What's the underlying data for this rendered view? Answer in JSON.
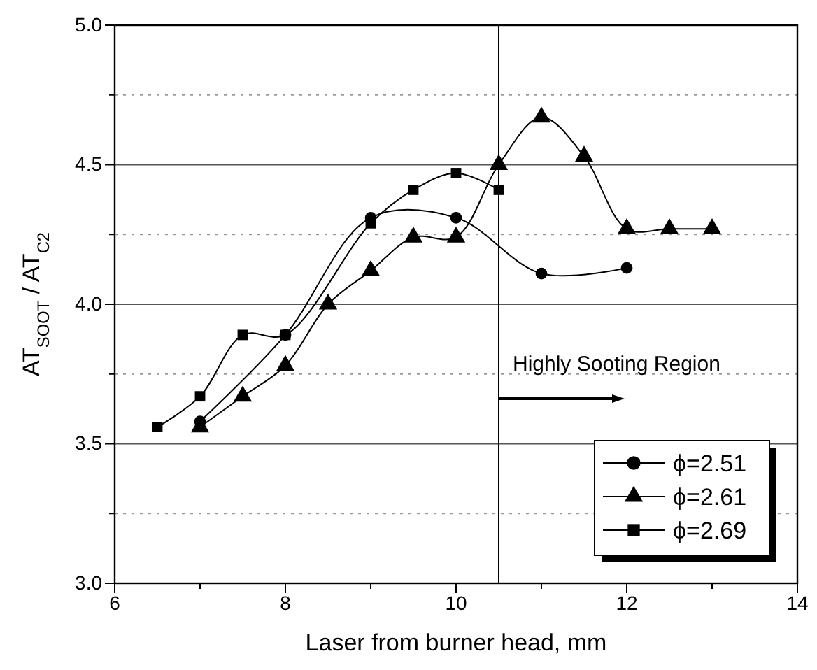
{
  "chart_data": {
    "type": "line",
    "xlabel": "Laser from burner head, mm",
    "ylabel": "AT$_{SOOT}$ / AT$_{C2}$",
    "xlim": [
      6,
      14
    ],
    "xticks": [
      6,
      {
        "value": 7,
        "label": null
      },
      8,
      {
        "value": 9,
        "label": null
      },
      10,
      {
        "value": 11,
        "label": null
      },
      12,
      {
        "value": 13,
        "label": null
      },
      14
    ],
    "ylim": [
      3,
      5
    ],
    "yticks": [
      {
        "value": 3,
        "label": "3.0"
      },
      {
        "value": 3.25,
        "label": null
      },
      {
        "value": 3.5,
        "label": "3.5"
      },
      {
        "value": 3.75,
        "label": null
      },
      {
        "value": 4,
        "label": "4.0"
      },
      {
        "value": 4.25,
        "label": null
      },
      {
        "value": 4.5,
        "label": "4.5"
      },
      {
        "value": 4.75,
        "label": null
      },
      {
        "value": 5,
        "label": "5.0"
      }
    ],
    "grid": "y",
    "legend": "bottom right",
    "line_style": "solid",
    "series": [
      {
        "name": "ϕ=2.51",
        "color": "#000000",
        "marker": "circle",
        "x": [
          7,
          8,
          9,
          10,
          11,
          12
        ],
        "values": [
          3.58,
          3.89,
          4.31,
          4.31,
          4.11,
          4.13
        ]
      },
      {
        "name": "ϕ=2.61",
        "color": "#000000",
        "marker": "triangle",
        "x": [
          7,
          7.5,
          8,
          8.5,
          9,
          9.5,
          10,
          10.5,
          11,
          11.5,
          12,
          12.5,
          13
        ],
        "values": [
          3.56,
          3.67,
          3.78,
          4.0,
          4.12,
          4.24,
          4.24,
          4.5,
          4.67,
          4.53,
          4.27,
          4.27,
          4.27
        ]
      },
      {
        "name": "ϕ=2.69",
        "color": "#000000",
        "marker": "square",
        "x": [
          6.5,
          7,
          7.5,
          8,
          9,
          9.5,
          10,
          10.5
        ],
        "values": [
          3.56,
          3.67,
          3.89,
          3.89,
          4.29,
          4.41,
          4.47,
          4.41
        ]
      }
    ],
    "ref_lines": [
      {
        "axis": "x",
        "value": 10.5,
        "color": "#000000"
      }
    ],
    "annotations": [
      "Highly Sooting Region"
    ]
  }
}
